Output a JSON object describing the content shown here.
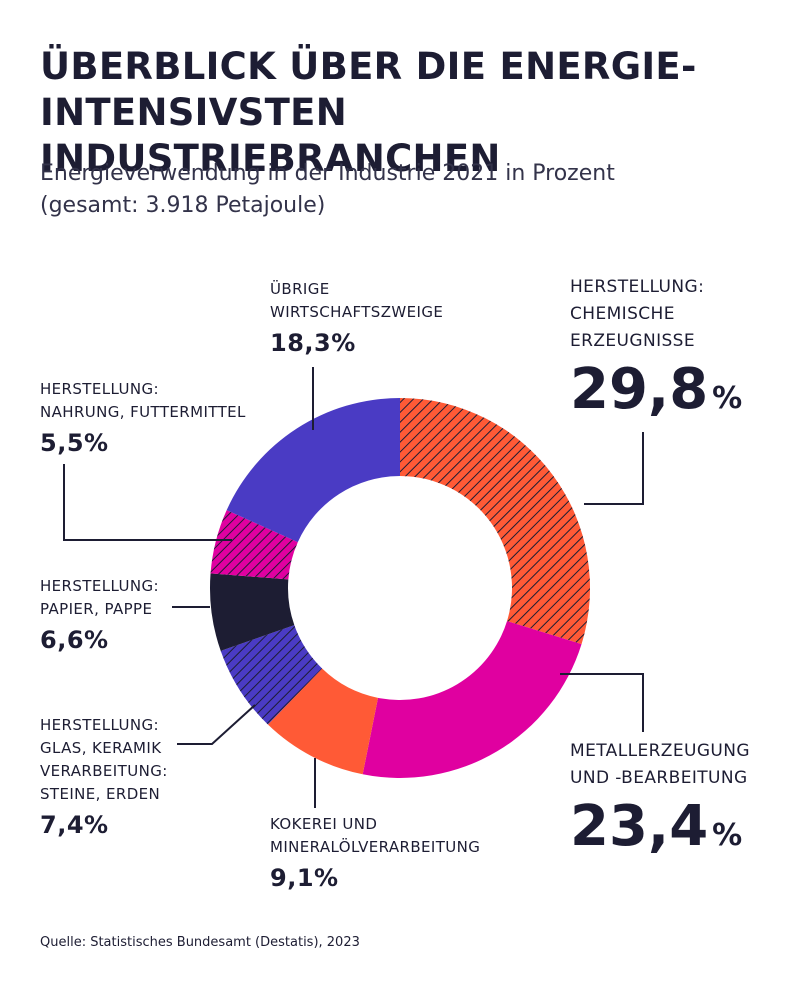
{
  "title": {
    "line1": "ÜBERBLICK ÜBER DIE ENERGIE-",
    "line2": "INTENSIVSTEN INDUSTRIEBRANCHEN"
  },
  "subtitle": {
    "line1": "Energieverwendung in der Industrie 2021 in Prozent",
    "line2": "(gesamt: 3.918 Petajoule)"
  },
  "source": "Quelle: Statistisches Bundesamt (Destatis), 2023",
  "chart_data": {
    "type": "pie",
    "title": "ÜBERBLICK ÜBER DIE ENERGIE-INTENSIVSTEN INDUSTRIEBRANCHEN",
    "subtitle": "Energieverwendung in der Industrie 2021 in Prozent (gesamt: 3.918 Petajoule)",
    "total": "3.918 Petajoule",
    "slices": [
      {
        "id": "chemie",
        "label_lines": [
          "HERSTELLUNG:",
          "CHEMISCHE",
          "ERZEUGNISSE"
        ],
        "value": 29.8,
        "value_num": "29,8",
        "value_unit": "%",
        "color": "#ff5a36",
        "pattern": "hatch-dark"
      },
      {
        "id": "metall",
        "label_lines": [
          "METALLERZEUGUNG",
          "UND -BEARBEITUNG"
        ],
        "value": 23.4,
        "value_num": "23,4",
        "value_unit": "%",
        "color": "#e000a0",
        "pattern": "none"
      },
      {
        "id": "kokerei",
        "label_lines": [
          "KOKEREI UND",
          "MINERALÖLVERARBEITUNG"
        ],
        "value": 9.1,
        "value_text": "9,1%",
        "color": "#ff5a36",
        "pattern": "none"
      },
      {
        "id": "glas",
        "label_lines": [
          "HERSTELLUNG:",
          "GLAS, KERAMIK",
          "VERARBEITUNG:",
          "STEINE, ERDEN"
        ],
        "value": 7.4,
        "value_text": "7,4%",
        "color": "#4a3bc4",
        "pattern": "hatch-dark"
      },
      {
        "id": "papier",
        "label_lines": [
          "HERSTELLUNG:",
          "PAPIER, PAPPE"
        ],
        "value": 6.6,
        "value_text": "6,6%",
        "color": "#1d1d33",
        "pattern": "none"
      },
      {
        "id": "nahrung",
        "label_lines": [
          "HERSTELLUNG:",
          "NAHRUNG, FUTTERMITTEL"
        ],
        "value": 5.5,
        "value_text": "5,5%",
        "color": "#e000a0",
        "pattern": "hatch-dark"
      },
      {
        "id": "uebrige",
        "label_lines": [
          "ÜBRIGE",
          "WIRTSCHAFTSZWEIGE"
        ],
        "value": 18.3,
        "value_text": "18,3%",
        "color": "#4a3bc4",
        "pattern": "none"
      }
    ]
  }
}
